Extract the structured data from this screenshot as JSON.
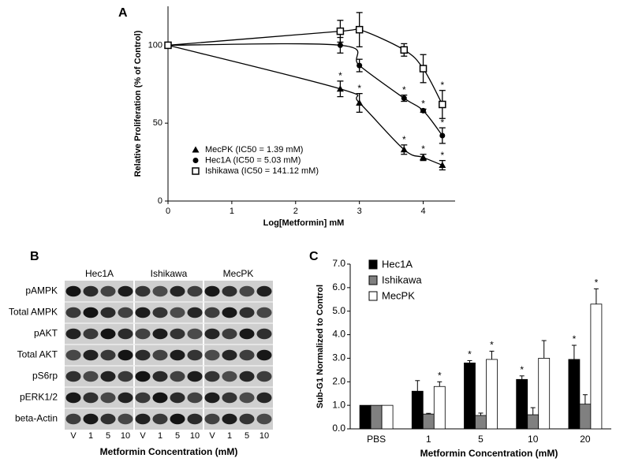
{
  "chart_data": [
    {
      "type": "scatter",
      "panel": "A",
      "x_label": "Log[Metformin] mM",
      "y_label": "Relative Proliferation (% of Control)",
      "xlim": [
        0,
        4.5
      ],
      "xticks": [
        0,
        1,
        2,
        3,
        4
      ],
      "ylim": [
        0,
        125
      ],
      "yticks": [
        0,
        50,
        100
      ],
      "x": [
        0,
        2.7,
        3,
        3.7,
        4,
        4.3
      ],
      "legend": "lower left",
      "fit_curve": true,
      "series": [
        {
          "name": "MecPK (IC50 = 1.39 mM)",
          "marker": "triangle",
          "color": "#000000",
          "values": [
            100,
            72,
            63,
            33,
            28,
            23
          ],
          "errors": [
            null,
            5,
            6,
            3,
            2,
            3
          ],
          "labels": [
            null,
            "*",
            "*",
            "*",
            "*",
            "*"
          ]
        },
        {
          "name": "Hec1A (IC50 = 5.03 mM)",
          "marker": "circle",
          "color": "#000000",
          "values": [
            100,
            100,
            87,
            66,
            58,
            42
          ],
          "errors": [
            null,
            5,
            4,
            2,
            1,
            5
          ],
          "labels": [
            null,
            null,
            null,
            "*",
            "*",
            "*"
          ]
        },
        {
          "name": "Ishikawa (IC50 = 141.12 mM)",
          "marker": "open-square",
          "color": "#000000",
          "values": [
            100,
            109,
            110,
            97,
            85,
            62
          ],
          "errors": [
            null,
            7,
            11,
            4,
            9,
            9
          ],
          "labels": [
            null,
            null,
            null,
            null,
            null,
            "*"
          ]
        }
      ]
    },
    {
      "type": "bar",
      "panel": "C",
      "x_label": "Metformin  Concentration  (mM)",
      "y_label": "Sub-G1 Normalized  to Control",
      "categories": [
        "PBS",
        "1",
        "5",
        "10",
        "20"
      ],
      "ylim": [
        0,
        7
      ],
      "yticks": [
        {
          "value": 0,
          "label": "0.0"
        },
        {
          "value": 1,
          "label": "1.0"
        },
        {
          "value": 2,
          "label": "2.0"
        },
        {
          "value": 3,
          "label": "3.0"
        },
        {
          "value": 4,
          "label": "4.0"
        },
        {
          "value": 5,
          "label": "5.0"
        },
        {
          "value": 6,
          "label": "6.0"
        },
        {
          "value": 7,
          "label": "7.0"
        }
      ],
      "legend": "upper left",
      "series": [
        {
          "name": "Hec1A",
          "color": "#000000",
          "values": [
            1.0,
            1.6,
            2.8,
            2.1,
            2.95
          ],
          "errors": [
            null,
            0.45,
            0.1,
            0.15,
            0.6
          ],
          "labels": [
            null,
            null,
            "*",
            "*",
            "*"
          ]
        },
        {
          "name": "Ishikawa",
          "color": "#808080",
          "values": [
            1.0,
            0.63,
            0.57,
            0.6,
            1.05
          ],
          "errors": [
            null,
            0.03,
            0.1,
            0.3,
            0.4
          ],
          "labels": [
            null,
            null,
            null,
            null,
            null
          ]
        },
        {
          "name": "MecPK",
          "color": "#ffffff",
          "values": [
            1.0,
            1.8,
            2.95,
            3.0,
            5.3
          ],
          "errors": [
            null,
            0.2,
            0.35,
            0.75,
            0.65
          ],
          "labels": [
            null,
            "*",
            "*",
            null,
            "*"
          ]
        }
      ]
    }
  ],
  "blot": {
    "panel": "B",
    "groups": [
      "Hec1A",
      "Ishikawa",
      "MecPK"
    ],
    "lanes": [
      "V",
      "1",
      "5",
      "10"
    ],
    "rows": [
      "pAMPK",
      "Total AMPK",
      "pAKT",
      "Total AKT",
      "pS6rp",
      "pERK1/2",
      "beta-Actin"
    ],
    "x_label": "Metformin Concentration (mM)"
  }
}
